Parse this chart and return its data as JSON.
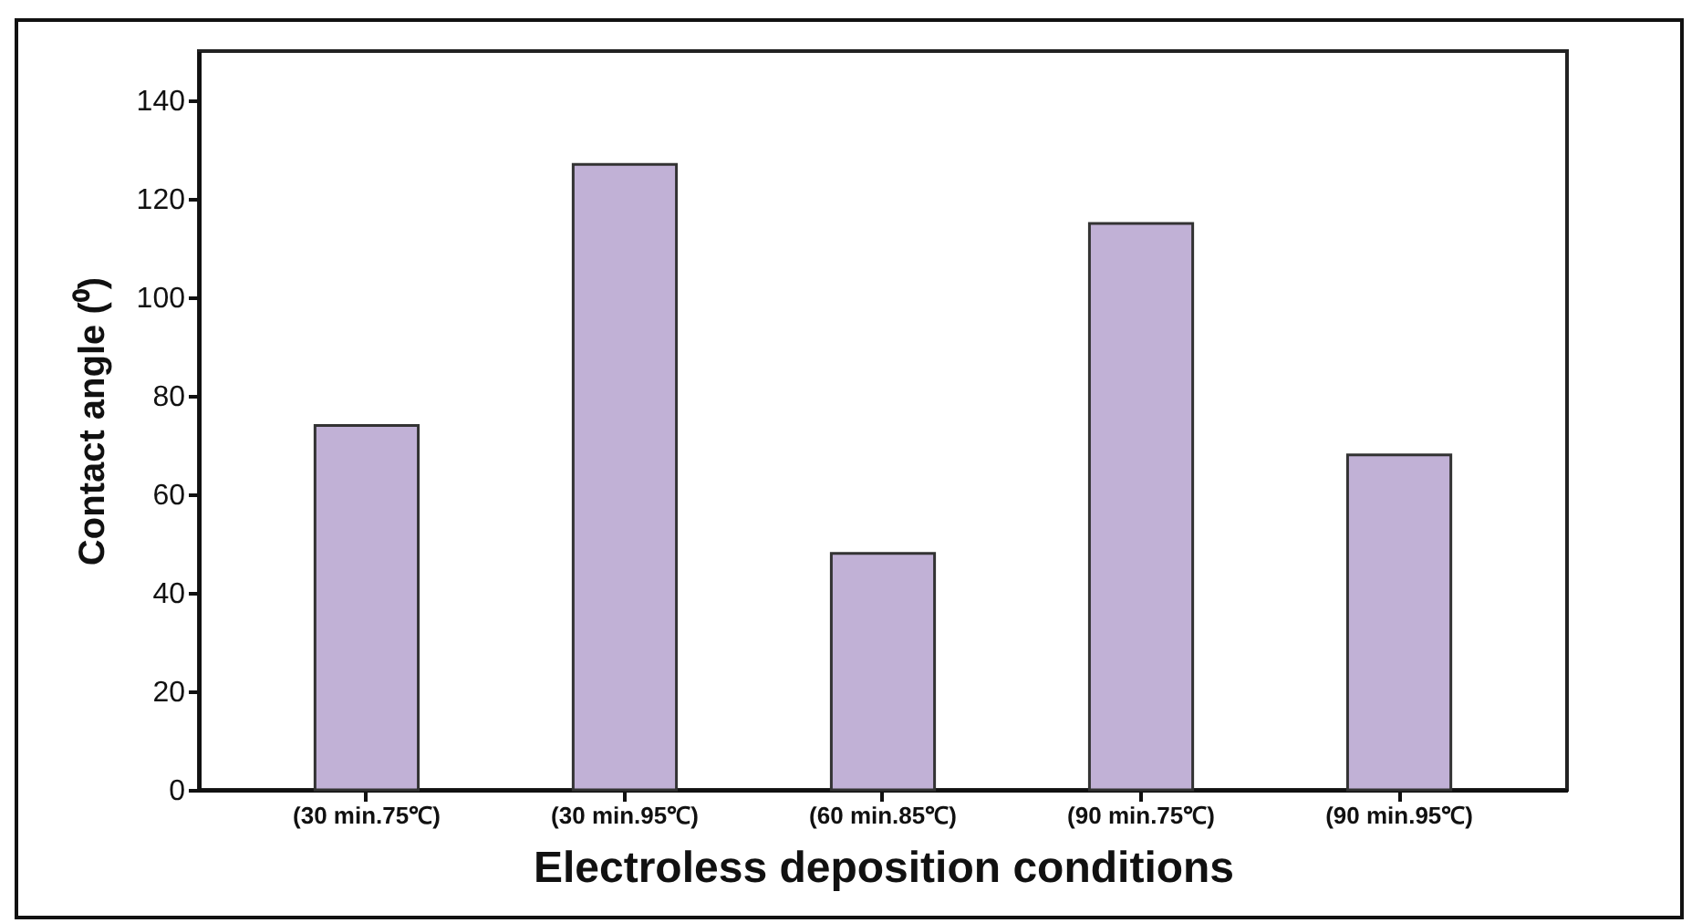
{
  "chart_data": {
    "type": "bar",
    "xlabel": "Electroless deposition conditions",
    "ylabel": "Contact angle (⁰)",
    "categories": [
      "(30 min.75℃)",
      "(30 min.95℃)",
      "(60 min.85℃)",
      "(90 min.75℃)",
      "(90 min.95℃)"
    ],
    "values": [
      74,
      127,
      48,
      115,
      68
    ],
    "color": "#c1b1d6",
    "ylim": [
      0,
      150
    ],
    "yticks": [
      0,
      20,
      40,
      60,
      80,
      100,
      120,
      140
    ],
    "grid": false
  }
}
